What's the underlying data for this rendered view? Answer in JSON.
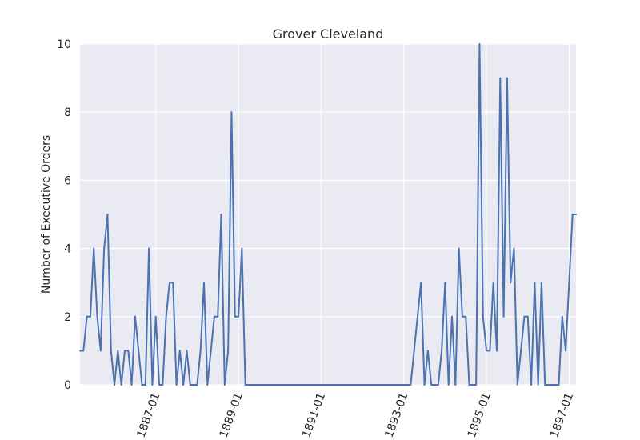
{
  "chart_data": {
    "type": "line",
    "title": "Grover Cleveland",
    "xlabel": "",
    "ylabel": "Number of Executive Orders",
    "ylim": [
      0,
      10
    ],
    "xlim": [
      "1885-03",
      "1897-03"
    ],
    "grid": true,
    "legend": "none",
    "x_tick_labels": [
      "1887-01",
      "1889-01",
      "1891-01",
      "1893-01",
      "1895-01",
      "1897-01"
    ],
    "y_tick_labels": [
      "0",
      "2",
      "4",
      "6",
      "8",
      "10"
    ],
    "series": [
      {
        "color": "#4c72b0",
        "x": [
          "1885-03",
          "1885-04",
          "1885-05",
          "1885-06",
          "1885-07",
          "1885-08",
          "1885-09",
          "1885-10",
          "1885-11",
          "1885-12",
          "1886-01",
          "1886-02",
          "1886-03",
          "1886-04",
          "1886-05",
          "1886-06",
          "1886-07",
          "1886-08",
          "1886-09",
          "1886-10",
          "1886-11",
          "1886-12",
          "1887-01",
          "1887-02",
          "1887-03",
          "1887-04",
          "1887-05",
          "1887-06",
          "1887-07",
          "1887-08",
          "1887-09",
          "1887-10",
          "1887-11",
          "1887-12",
          "1888-01",
          "1888-02",
          "1888-03",
          "1888-04",
          "1888-05",
          "1888-06",
          "1888-07",
          "1888-08",
          "1888-09",
          "1888-10",
          "1888-11",
          "1888-12",
          "1889-01",
          "1889-02",
          "1889-03",
          "1889-04",
          "1893-03",
          "1893-04",
          "1893-05",
          "1893-06",
          "1893-07",
          "1893-08",
          "1893-09",
          "1893-10",
          "1893-11",
          "1893-12",
          "1894-01",
          "1894-02",
          "1894-03",
          "1894-04",
          "1894-05",
          "1894-06",
          "1894-07",
          "1894-08",
          "1894-09",
          "1894-10",
          "1894-11",
          "1894-12",
          "1895-01",
          "1895-02",
          "1895-03",
          "1895-04",
          "1895-05",
          "1895-06",
          "1895-07",
          "1895-08",
          "1895-09",
          "1895-10",
          "1895-11",
          "1895-12",
          "1896-01",
          "1896-02",
          "1896-03",
          "1896-04",
          "1896-05",
          "1896-06",
          "1896-07",
          "1896-08",
          "1896-09",
          "1896-10",
          "1896-11",
          "1896-12",
          "1897-01",
          "1897-02",
          "1897-03"
        ],
        "values": [
          1,
          1,
          2,
          2,
          4,
          2,
          1,
          4,
          5,
          1,
          0,
          1,
          0,
          1,
          1,
          0,
          2,
          1,
          0,
          0,
          4,
          0,
          2,
          0,
          0,
          2,
          3,
          3,
          0,
          1,
          0,
          1,
          0,
          0,
          0,
          1,
          3,
          0,
          1,
          2,
          2,
          5,
          0,
          1,
          8,
          2,
          2,
          4,
          0,
          0,
          0,
          1,
          2,
          3,
          0,
          1,
          0,
          0,
          0,
          1,
          3,
          0,
          2,
          0,
          4,
          2,
          2,
          0,
          0,
          0,
          10,
          2,
          1,
          1,
          3,
          1,
          9,
          2,
          9,
          3,
          4,
          0,
          1,
          2,
          2,
          0,
          3,
          0,
          3,
          0,
          0,
          0,
          0,
          0,
          2,
          1,
          3,
          5,
          5
        ]
      }
    ]
  }
}
